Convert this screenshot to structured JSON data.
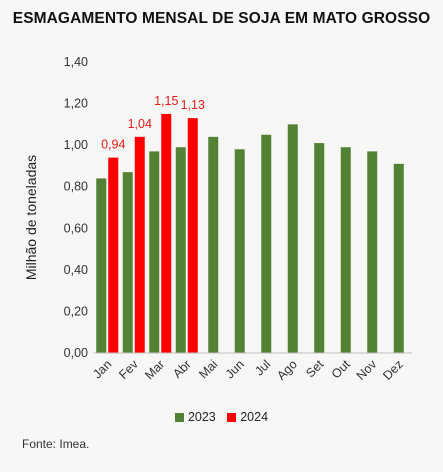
{
  "chart_data": {
    "type": "bar",
    "title": "ESMAGAMENTO MENSAL DE SOJA EM MATO GROSSO",
    "ylabel": "Milhão de toneladas",
    "xlabel": "",
    "categories": [
      "Jan",
      "Fev",
      "Mar",
      "Abr",
      "Mai",
      "Jun",
      "Jul",
      "Ago",
      "Set",
      "Out",
      "Nov",
      "Dez"
    ],
    "ylim": [
      0,
      1.4
    ],
    "yticks": [
      "0,00",
      "0,20",
      "0,40",
      "0,60",
      "0,80",
      "1,00",
      "1,20",
      "1,40"
    ],
    "grid": false,
    "legend_position": "bottom",
    "series": [
      {
        "name": "2023",
        "color": "#548235",
        "values": [
          0.84,
          0.87,
          0.97,
          0.99,
          1.04,
          0.98,
          1.05,
          1.1,
          1.01,
          0.99,
          0.97,
          0.91
        ]
      },
      {
        "name": "2024",
        "color": "#ff0000",
        "values": [
          0.94,
          1.04,
          1.15,
          1.13,
          null,
          null,
          null,
          null,
          null,
          null,
          null,
          null
        ],
        "data_labels": [
          "0,94",
          "1,04",
          "1,15",
          "1,13"
        ]
      }
    ]
  },
  "footer": {
    "source": "Fonte: Imea."
  }
}
